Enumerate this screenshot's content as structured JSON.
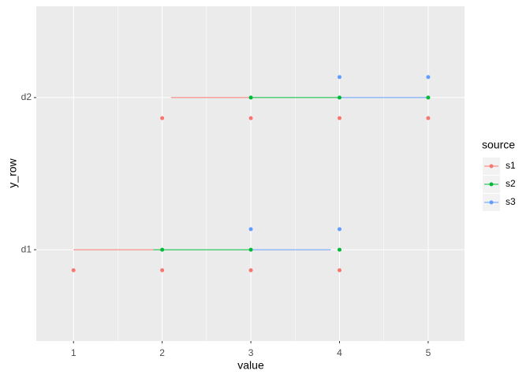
{
  "chart_data": {
    "type": "segment-dot",
    "x_label": "value",
    "y_label": "y_row",
    "categories": [
      "d1",
      "d2"
    ],
    "xlim": [
      0.58,
      5.41
    ],
    "xticks": [
      1,
      2,
      3,
      4,
      5
    ],
    "legend_title": "source",
    "legend_position": "right",
    "grid": true,
    "series": [
      {
        "name": "s1",
        "color": "#F8766D",
        "segments": [
          [
            1,
            1.9
          ],
          [
            2.1,
            3
          ]
        ],
        "points": [
          [
            1,
            2,
            3,
            4
          ],
          [
            2,
            3,
            4,
            5
          ]
        ]
      },
      {
        "name": "s2",
        "color": "#00BA38",
        "segments": [
          [
            1.9,
            3
          ],
          [
            3,
            4
          ]
        ],
        "points": [
          [
            2,
            3,
            4
          ],
          [
            3,
            4,
            5
          ]
        ]
      },
      {
        "name": "s3",
        "color": "#619CFF",
        "segments": [
          [
            3,
            3.9
          ],
          [
            4,
            5
          ]
        ],
        "points": [
          [
            3,
            4
          ],
          [
            4,
            5
          ]
        ]
      }
    ]
  }
}
